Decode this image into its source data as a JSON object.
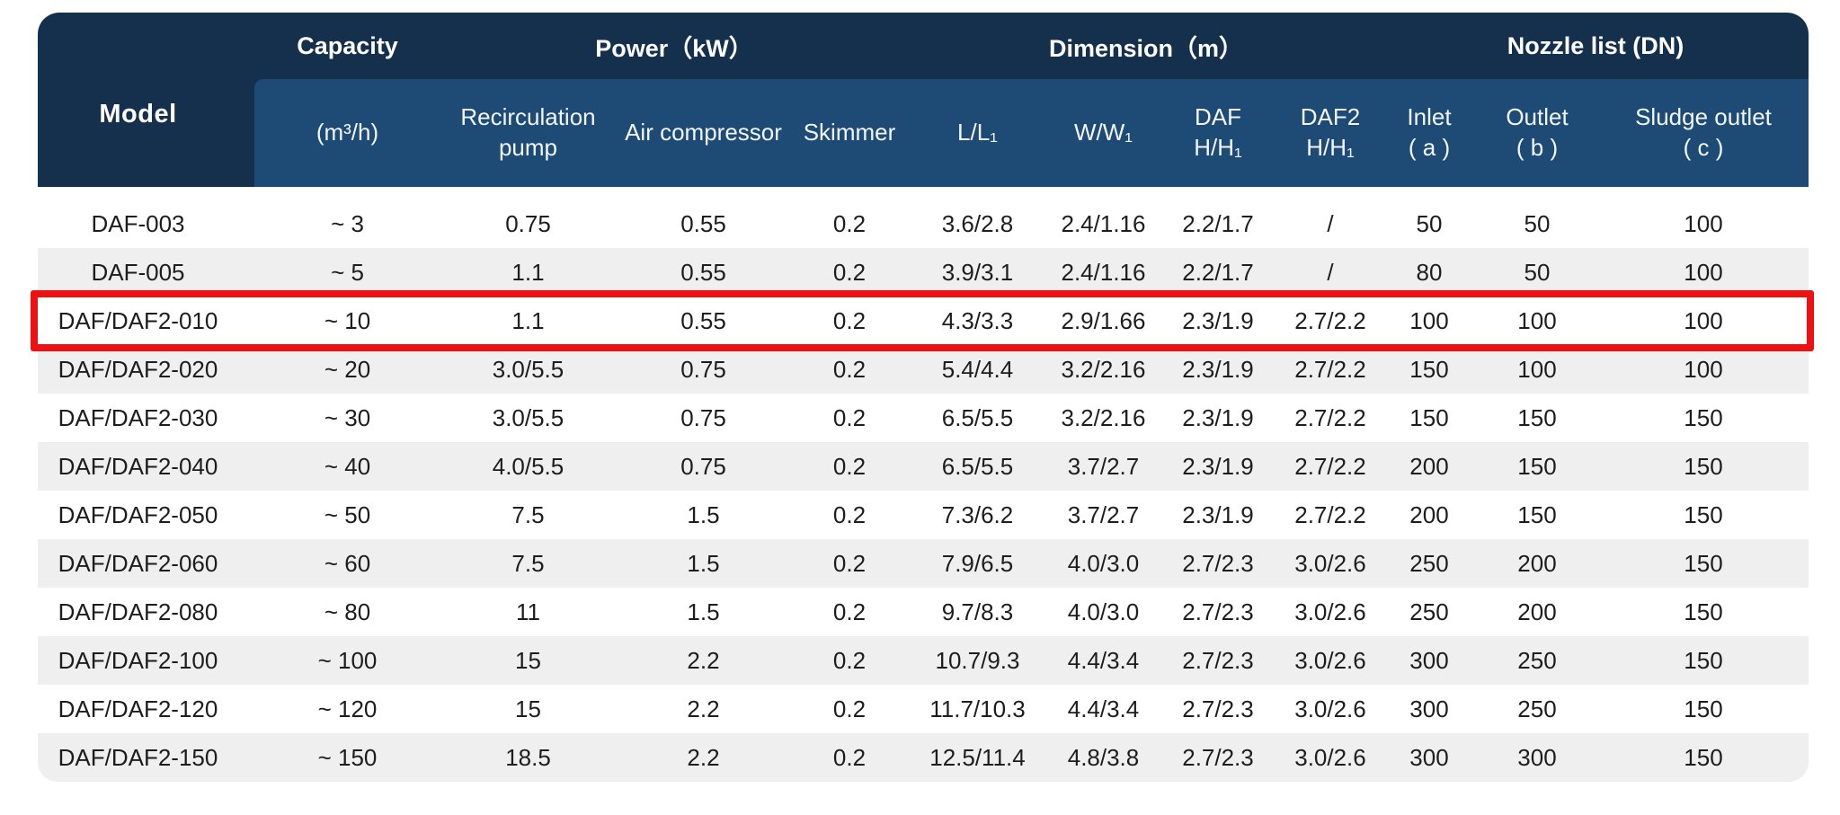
{
  "colors": {
    "header_dark": "#15304d",
    "header_blue": "#1d4b75",
    "row_alt_gray": "#efefef",
    "row_white": "#ffffff",
    "header_text": "#ffffff",
    "body_text": "#1d1d1d",
    "highlight_red": "#ee1111"
  },
  "table": {
    "model_header": "Model",
    "group_headers": [
      {
        "label": "Capacity",
        "span": 1
      },
      {
        "label": "Power（kW）",
        "span": 3
      },
      {
        "label": "Dimension（m）",
        "span": 4
      },
      {
        "label": "Nozzle list (DN)",
        "span": 3
      }
    ],
    "sub_headers": [
      "(m³/h)",
      "Recirculation\npump",
      "Air compressor",
      "Skimmer",
      "L/L₁",
      "W/W₁",
      "DAF\nH/H₁",
      "DAF2\nH/H₁",
      "Inlet\n( a )",
      "Outlet\n( b )",
      "Sludge outlet\n( c )"
    ],
    "rows": [
      {
        "model": "DAF-003",
        "values": [
          "~ 3",
          "0.75",
          "0.55",
          "0.2",
          "3.6/2.8",
          "2.4/1.16",
          "2.2/1.7",
          "/",
          "50",
          "50",
          "100"
        ]
      },
      {
        "model": "DAF-005",
        "values": [
          "~ 5",
          "1.1",
          "0.55",
          "0.2",
          "3.9/3.1",
          "2.4/1.16",
          "2.2/1.7",
          "/",
          "80",
          "50",
          "100"
        ]
      },
      {
        "model": "DAF/DAF2-010",
        "values": [
          "~ 10",
          "1.1",
          "0.55",
          "0.2",
          "4.3/3.3",
          "2.9/1.66",
          "2.3/1.9",
          "2.7/2.2",
          "100",
          "100",
          "100"
        ]
      },
      {
        "model": "DAF/DAF2-020",
        "values": [
          "~ 20",
          "3.0/5.5",
          "0.75",
          "0.2",
          "5.4/4.4",
          "3.2/2.16",
          "2.3/1.9",
          "2.7/2.2",
          "150",
          "100",
          "100"
        ]
      },
      {
        "model": "DAF/DAF2-030",
        "values": [
          "~ 30",
          "3.0/5.5",
          "0.75",
          "0.2",
          "6.5/5.5",
          "3.2/2.16",
          "2.3/1.9",
          "2.7/2.2",
          "150",
          "150",
          "150"
        ]
      },
      {
        "model": "DAF/DAF2-040",
        "values": [
          "~ 40",
          "4.0/5.5",
          "0.75",
          "0.2",
          "6.5/5.5",
          "3.7/2.7",
          "2.3/1.9",
          "2.7/2.2",
          "200",
          "150",
          "150"
        ]
      },
      {
        "model": "DAF/DAF2-050",
        "values": [
          "~ 50",
          "7.5",
          "1.5",
          "0.2",
          "7.3/6.2",
          "3.7/2.7",
          "2.3/1.9",
          "2.7/2.2",
          "200",
          "150",
          "150"
        ]
      },
      {
        "model": "DAF/DAF2-060",
        "values": [
          "~ 60",
          "7.5",
          "1.5",
          "0.2",
          "7.9/6.5",
          "4.0/3.0",
          "2.7/2.3",
          "3.0/2.6",
          "250",
          "200",
          "150"
        ]
      },
      {
        "model": "DAF/DAF2-080",
        "values": [
          "~ 80",
          "11",
          "1.5",
          "0.2",
          "9.7/8.3",
          "4.0/3.0",
          "2.7/2.3",
          "3.0/2.6",
          "250",
          "200",
          "150"
        ]
      },
      {
        "model": "DAF/DAF2-100",
        "values": [
          "~ 100",
          "15",
          "2.2",
          "0.2",
          "10.7/9.3",
          "4.4/3.4",
          "2.7/2.3",
          "3.0/2.6",
          "300",
          "250",
          "150"
        ]
      },
      {
        "model": "DAF/DAF2-120",
        "values": [
          "~ 120",
          "15",
          "2.2",
          "0.2",
          "11.7/10.3",
          "4.4/3.4",
          "2.7/2.3",
          "3.0/2.6",
          "300",
          "250",
          "150"
        ]
      },
      {
        "model": "DAF/DAF2-150",
        "values": [
          "~ 150",
          "18.5",
          "2.2",
          "0.2",
          "12.5/11.4",
          "4.8/3.8",
          "2.7/2.3",
          "3.0/2.6",
          "300",
          "300",
          "150"
        ]
      }
    ],
    "highlighted_model": "DAF/DAF2-010"
  }
}
